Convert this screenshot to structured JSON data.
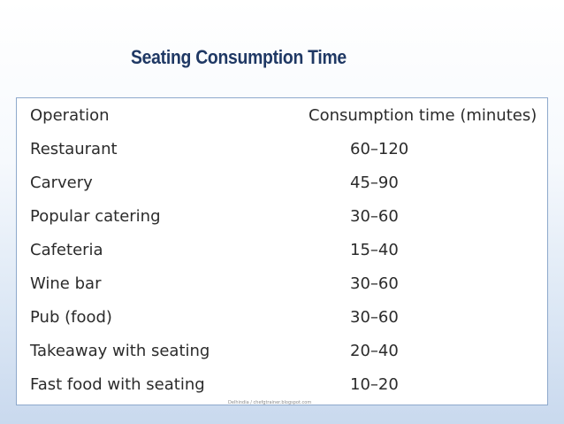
{
  "title": "Seating Consumption Time",
  "table": {
    "headers": {
      "operation": "Operation",
      "time": "Consumption time (minutes)"
    },
    "rows": [
      {
        "operation": "Restaurant",
        "time": "60–120"
      },
      {
        "operation": "Carvery",
        "time": "45–90"
      },
      {
        "operation": "Popular catering",
        "time": "30–60"
      },
      {
        "operation": "Cafeteria",
        "time": "15–40"
      },
      {
        "operation": "Wine bar",
        "time": "30–60"
      },
      {
        "operation": "Pub (food)",
        "time": "30–60"
      },
      {
        "operation": "Takeaway with seating",
        "time": "20–40"
      },
      {
        "operation": "Fast food with seating",
        "time": "10–20"
      }
    ]
  },
  "watermark": "Delhindia / chefgtrainer.blogspot.com",
  "colors": {
    "title": "#1f3864",
    "panel_border": "#8ea9cc",
    "background_bottom": "#c9d9ee"
  }
}
